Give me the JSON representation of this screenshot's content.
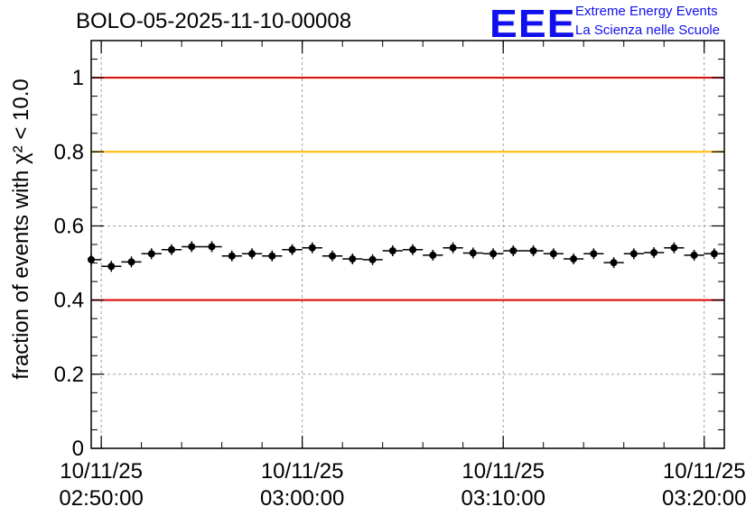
{
  "header": {
    "title": "BOLO-05-2025-11-10-00008",
    "logo_mark": "EEE",
    "logo_line1": "Extreme Energy Events",
    "logo_line2": "La Scienza nelle Scuole"
  },
  "colors": {
    "limit_red": "#dd0000",
    "limit_yellow": "#ffbb00",
    "points": "#000000",
    "grid": "#a0a0a0",
    "logo": "#1010ee"
  },
  "chart_data": {
    "type": "scatter",
    "title": "BOLO-05-2025-11-10-00008",
    "ylabel": "fraction of events with χ² < 10.0",
    "xlabel": "",
    "xlim": [
      "10/11/25 02:49:30",
      "10/11/25 03:21:00"
    ],
    "ylim": [
      0,
      1.1
    ],
    "yticks": [
      "0",
      "0.2",
      "0.4",
      "0.6",
      "0.8",
      "1"
    ],
    "xticks": [
      {
        "date": "10/11/25",
        "time": "02:50:00"
      },
      {
        "date": "10/11/25",
        "time": "03:00:00"
      },
      {
        "date": "10/11/25",
        "time": "03:10:00"
      },
      {
        "date": "10/11/25",
        "time": "03:20:00"
      }
    ],
    "grid": true,
    "reference_lines": [
      {
        "y": 1.0,
        "color": "#dd0000"
      },
      {
        "y": 0.8,
        "color": "#ffbb00"
      },
      {
        "y": 0.4,
        "color": "#dd0000"
      }
    ],
    "bin_width_min": 1,
    "series": [
      {
        "x": [
          "02:49:30",
          "02:50:30",
          "02:51:30",
          "02:52:30",
          "02:53:30",
          "02:54:30",
          "02:55:30",
          "02:56:30",
          "02:57:30",
          "02:58:30",
          "02:59:30",
          "03:00:30",
          "03:01:30",
          "03:02:30",
          "03:03:30",
          "03:04:30",
          "03:05:30",
          "03:06:30",
          "03:07:30",
          "03:08:30",
          "03:09:30",
          "03:10:30",
          "03:11:30",
          "03:12:30",
          "03:13:30",
          "03:14:30",
          "03:15:30",
          "03:16:30",
          "03:17:30",
          "03:18:30",
          "03:19:30",
          "03:20:30"
        ],
        "y": [
          0.509,
          0.491,
          0.503,
          0.525,
          0.536,
          0.544,
          0.544,
          0.519,
          0.525,
          0.519,
          0.536,
          0.541,
          0.519,
          0.511,
          0.509,
          0.533,
          0.536,
          0.521,
          0.541,
          0.527,
          0.525,
          0.533,
          0.533,
          0.525,
          0.511,
          0.525,
          0.501,
          0.525,
          0.528,
          0.541,
          0.521,
          0.525
        ]
      }
    ]
  }
}
